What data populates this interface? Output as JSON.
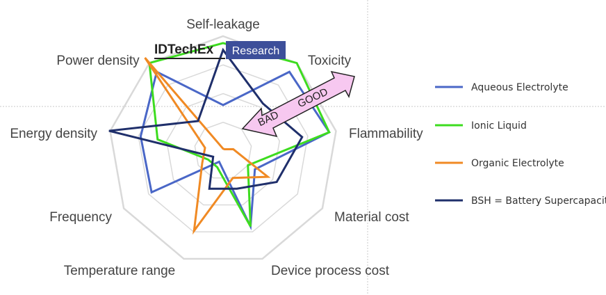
{
  "logo": {
    "brand": "IDTechEx",
    "suffix": "Research",
    "suffix_bg": "#3d4f9a"
  },
  "arrow": {
    "bad_label": "BAD",
    "good_label": "GOOD",
    "fill": "#f7c8f0"
  },
  "chart_data": {
    "type": "radar",
    "axes": [
      "Self-leakage",
      "Toxicity",
      "Flammability",
      "Material cost",
      "Device process cost",
      "Temperature range",
      "Frequency",
      "Energy density",
      "Power density"
    ],
    "range": [
      0,
      10
    ],
    "grid_levels": 4,
    "legend_position": "right",
    "series": [
      {
        "name": "Aqueous Electrolyte",
        "color": "#4a67c7",
        "values": [
          4,
          9,
          9.4,
          3.2,
          7,
          1,
          7.2,
          7.3,
          9
        ]
      },
      {
        "name": "Ionic Liquid",
        "color": "#3ddc1f",
        "values": [
          9.4,
          10,
          9.4,
          2.5,
          7,
          1.5,
          1.5,
          5.8,
          10
        ]
      },
      {
        "name": "Organic Electrolyte",
        "color": "#f08a24",
        "values": [
          0.2,
          0.2,
          0.9,
          4.5,
          2.5,
          7.4,
          2.1,
          1.6,
          10.6
        ]
      },
      {
        "name": "BSH = Battery Supercapacitor Hybrid",
        "color": "#1f2f6b",
        "values": [
          8.8,
          5.4,
          7,
          5.4,
          3.5,
          3.5,
          1,
          10.1,
          3.4
        ]
      }
    ]
  }
}
